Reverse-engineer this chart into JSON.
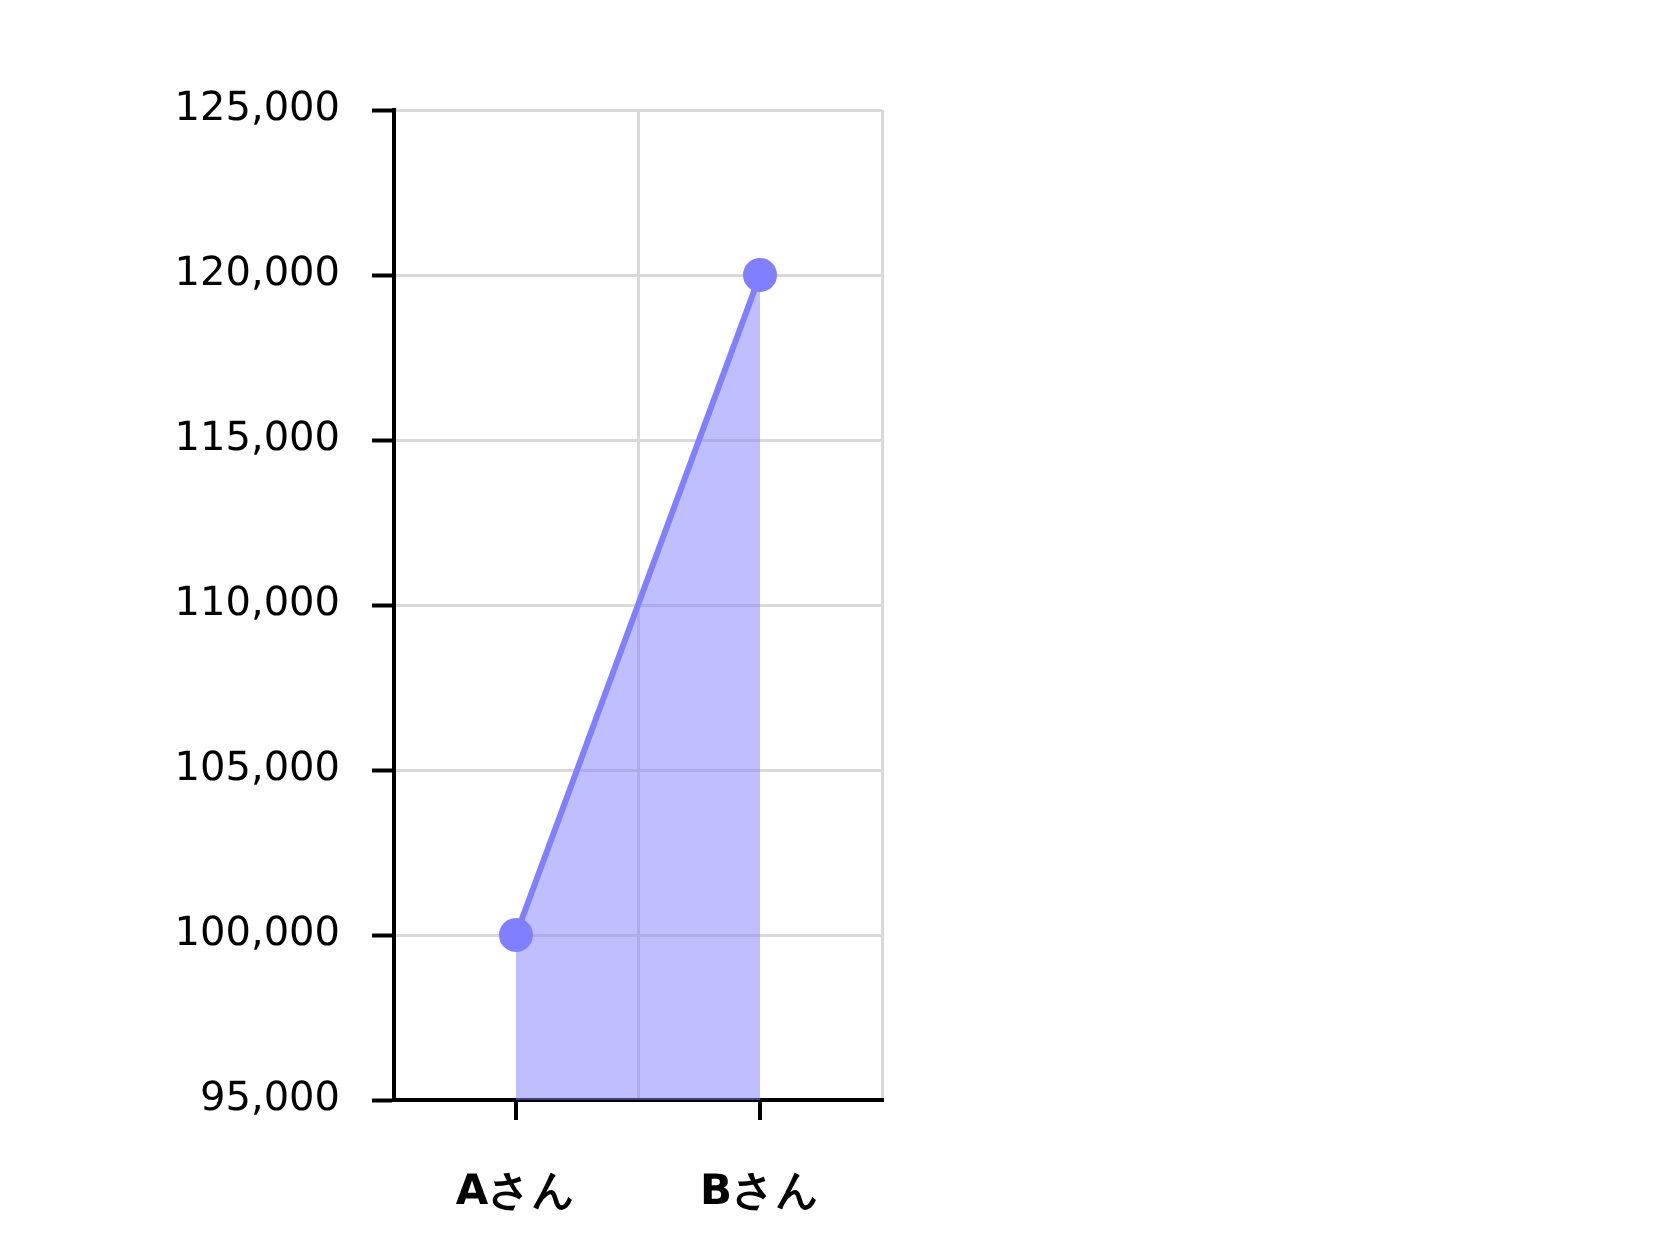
{
  "chart_data": {
    "type": "area",
    "categories": [
      "Aさん",
      "Bさん"
    ],
    "values": [
      100000,
      120000
    ],
    "color": "#7f7fff",
    "ylim": [
      95000,
      125000
    ],
    "yticks": [
      {
        "value": 95000,
        "label": "95,000"
      },
      {
        "value": 100000,
        "label": "100,000"
      },
      {
        "value": 105000,
        "label": "105,000"
      },
      {
        "value": 110000,
        "label": "110,000"
      },
      {
        "value": 115000,
        "label": "115,000"
      },
      {
        "value": 120000,
        "label": "120,000"
      },
      {
        "value": 125000,
        "label": "125,000"
      }
    ],
    "grid": true,
    "marker": "circle",
    "legend": false
  }
}
